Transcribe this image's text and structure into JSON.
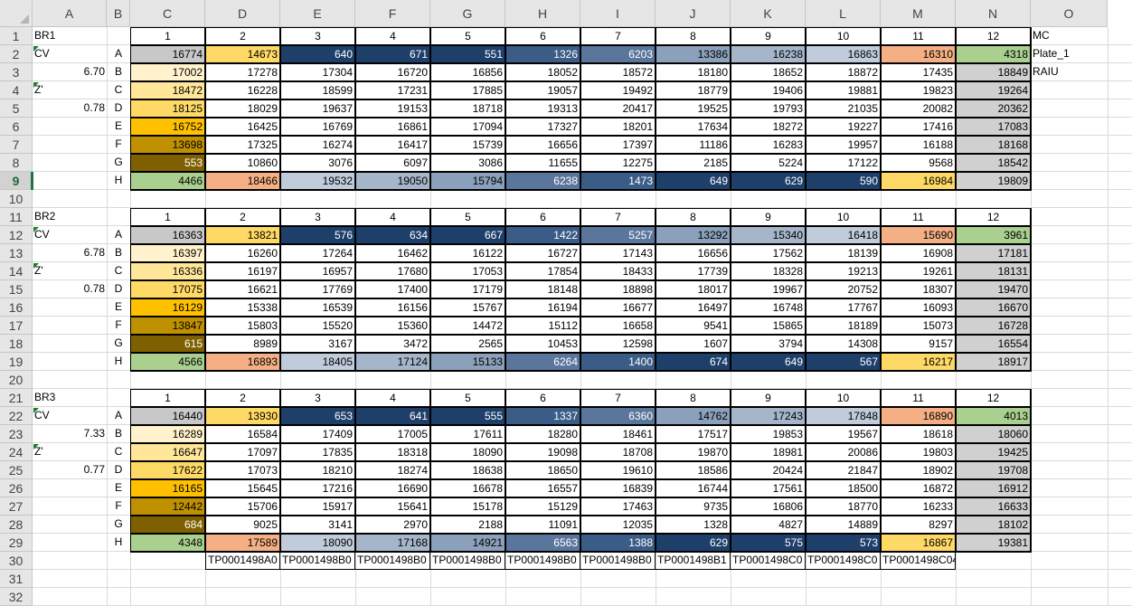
{
  "columns": [
    "A",
    "B",
    "C",
    "D",
    "E",
    "F",
    "G",
    "H",
    "I",
    "J",
    "K",
    "L",
    "M",
    "N",
    "O"
  ],
  "rows": [
    "1",
    "2",
    "3",
    "4",
    "5",
    "6",
    "7",
    "8",
    "9",
    "10",
    "11",
    "12",
    "13",
    "14",
    "15",
    "16",
    "17",
    "18",
    "19",
    "20",
    "21",
    "22",
    "23",
    "24",
    "25",
    "26",
    "27",
    "28",
    "29",
    "30",
    "31",
    "32"
  ],
  "selected_row": "9",
  "plate_cols": [
    "1",
    "2",
    "3",
    "4",
    "5",
    "6",
    "7",
    "8",
    "9",
    "10",
    "11",
    "12"
  ],
  "row_letters": [
    "A",
    "B",
    "C",
    "D",
    "E",
    "F",
    "G",
    "H"
  ],
  "blocks": [
    {
      "name": "BR1",
      "cv_label": "CV",
      "cv": "6.70",
      "z_label": "Z'",
      "z": "0.78",
      "values": [
        [
          "16774",
          "14673",
          "640",
          "671",
          "551",
          "1326",
          "6203",
          "13386",
          "16238",
          "16863",
          "16310",
          "4318"
        ],
        [
          "17002",
          "17278",
          "17304",
          "16720",
          "16856",
          "18052",
          "18572",
          "18180",
          "18652",
          "18872",
          "17435",
          "18849"
        ],
        [
          "18472",
          "16228",
          "18599",
          "17231",
          "17885",
          "19057",
          "19492",
          "18779",
          "19406",
          "19881",
          "19823",
          "19264"
        ],
        [
          "18125",
          "18029",
          "19637",
          "19153",
          "18718",
          "19313",
          "20417",
          "19525",
          "19793",
          "21035",
          "20082",
          "20362"
        ],
        [
          "16752",
          "16425",
          "16769",
          "16861",
          "17094",
          "17327",
          "18201",
          "17634",
          "18272",
          "19227",
          "17416",
          "17083"
        ],
        [
          "13698",
          "17325",
          "16274",
          "16417",
          "15739",
          "16656",
          "17397",
          "11186",
          "16283",
          "19957",
          "16188",
          "18168"
        ],
        [
          "553",
          "10860",
          "3076",
          "6097",
          "3086",
          "11655",
          "12275",
          "2185",
          "5224",
          "17122",
          "9568",
          "18542"
        ],
        [
          "4466",
          "18466",
          "19532",
          "19050",
          "15794",
          "6238",
          "1473",
          "649",
          "629",
          "590",
          "16984",
          "19809"
        ]
      ]
    },
    {
      "name": "BR2",
      "cv_label": "CV",
      "cv": "6.78",
      "z_label": "Z'",
      "z": "0.78",
      "values": [
        [
          "16363",
          "13821",
          "576",
          "634",
          "667",
          "1422",
          "5257",
          "13292",
          "15340",
          "16418",
          "15690",
          "3961"
        ],
        [
          "16397",
          "16260",
          "17264",
          "16462",
          "16122",
          "16727",
          "17143",
          "16656",
          "17562",
          "18139",
          "16908",
          "17181"
        ],
        [
          "16336",
          "16197",
          "16957",
          "17680",
          "17053",
          "17854",
          "18433",
          "17739",
          "18328",
          "19213",
          "19261",
          "18131"
        ],
        [
          "17075",
          "16621",
          "17769",
          "17400",
          "17179",
          "18148",
          "18898",
          "18017",
          "19967",
          "20752",
          "18307",
          "19470"
        ],
        [
          "16129",
          "15338",
          "16539",
          "16156",
          "15767",
          "16194",
          "16677",
          "16497",
          "16748",
          "17767",
          "16093",
          "16670"
        ],
        [
          "13847",
          "15803",
          "15520",
          "15360",
          "14472",
          "15112",
          "16658",
          "9541",
          "15865",
          "18189",
          "15073",
          "16728"
        ],
        [
          "615",
          "8989",
          "3167",
          "3472",
          "2565",
          "10453",
          "12598",
          "1607",
          "3794",
          "14308",
          "9157",
          "16554"
        ],
        [
          "4566",
          "16893",
          "18405",
          "17124",
          "15133",
          "6264",
          "1400",
          "674",
          "649",
          "567",
          "16217",
          "18917"
        ]
      ]
    },
    {
      "name": "BR3",
      "cv_label": "CV",
      "cv": "7.33",
      "z_label": "Z'",
      "z": "0.77",
      "values": [
        [
          "16440",
          "13930",
          "653",
          "641",
          "555",
          "1337",
          "6360",
          "14762",
          "17243",
          "17848",
          "16890",
          "4013"
        ],
        [
          "16289",
          "16584",
          "17409",
          "17005",
          "17611",
          "18280",
          "18461",
          "17517",
          "19853",
          "19567",
          "18618",
          "18060"
        ],
        [
          "16647",
          "17097",
          "17835",
          "18318",
          "18090",
          "19098",
          "18708",
          "19870",
          "18981",
          "20086",
          "19803",
          "19425"
        ],
        [
          "17622",
          "17073",
          "18210",
          "18274",
          "18638",
          "18650",
          "19610",
          "18586",
          "20424",
          "21847",
          "18902",
          "19708"
        ],
        [
          "16165",
          "15645",
          "17216",
          "16690",
          "16678",
          "16557",
          "16839",
          "16744",
          "17561",
          "18500",
          "16872",
          "16912"
        ],
        [
          "12442",
          "15706",
          "15917",
          "15641",
          "15178",
          "15129",
          "17463",
          "9735",
          "16806",
          "18770",
          "16233",
          "16633"
        ],
        [
          "684",
          "9025",
          "3141",
          "2970",
          "2188",
          "11091",
          "12035",
          "1328",
          "4827",
          "14889",
          "8297",
          "18102"
        ],
        [
          "4348",
          "17589",
          "18090",
          "17168",
          "14921",
          "6563",
          "1388",
          "629",
          "575",
          "573",
          "16867",
          "19381"
        ]
      ]
    }
  ],
  "side_labels": {
    "mc": "MC",
    "plate": "Plate_1",
    "raiu": "RAIU"
  },
  "tp_labels": [
    "TP0001498A0",
    "TP0001498B0",
    "TP0001498B0",
    "TP0001498B0",
    "TP0001498B0",
    "TP0001498B0",
    "TP0001498B1",
    "TP0001498C0",
    "TP0001498C0",
    "TP0001498C04"
  ],
  "colors": {
    "header_bg": "#e6e6e6",
    "grid": "#dadada",
    "selected_row_accent": "#217346",
    "col1": [
      "#c8c8c8",
      "#fff2cc",
      "#ffe699",
      "#ffd966",
      "#ffc000",
      "#bf9000",
      "#7f6000",
      "#a9d08e"
    ],
    "col12": [
      "#a9d08e",
      "#d0d0d0",
      "#d0d0d0",
      "#d0d0d0",
      "#d0d0d0",
      "#d0d0d0",
      "#d0d0d0",
      "#d0d0d0"
    ],
    "rowA": [
      "",
      "#ffd966",
      "#1f3f6b",
      "#1f3f6b",
      "#1f3f6b",
      "#3b5c87",
      "#5a769c",
      "#8ba0ba",
      "#a5b6cb",
      "#c0ccdb",
      "#f4b084",
      ""
    ],
    "rowH": [
      "",
      "#f4b084",
      "#c0ccdb",
      "#a5b6cb",
      "#8ba0ba",
      "#5a769c",
      "#3b5c87",
      "#1f3f6b",
      "#1f3f6b",
      "#1f3f6b",
      "#ffd966",
      ""
    ]
  }
}
